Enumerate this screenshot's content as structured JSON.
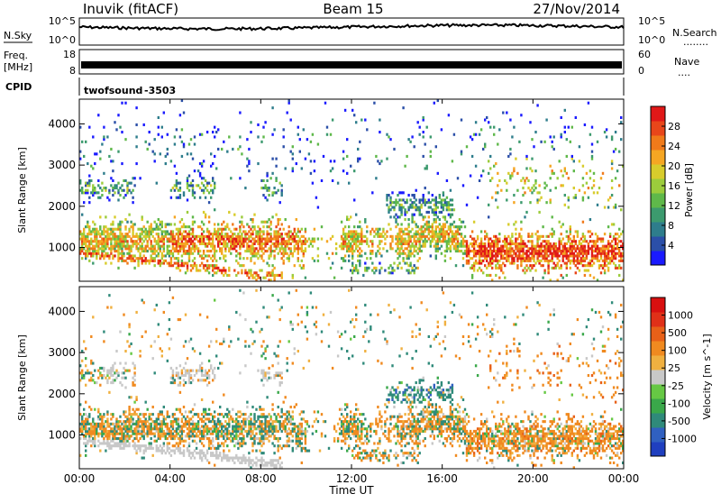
{
  "header": {
    "station": "Inuvik (fitACF)",
    "beam": "Beam 15",
    "date": "27/Nov/2014"
  },
  "noise_panel": {
    "left_label": "N.Sky",
    "left_ticks": [
      "10^5",
      "10^0"
    ],
    "right_ticks": [
      "10^5",
      "10^0"
    ],
    "right_label": "N.Search",
    "right_dots": "........"
  },
  "freq_panel": {
    "left_label_1": "Freq.",
    "left_label_2": "[MHz]",
    "left_ticks": [
      "18",
      "8"
    ],
    "right_ticks": [
      "60",
      "0"
    ],
    "right_label": "Nave",
    "right_dots": "....",
    "freq_mhz": 10.5,
    "nave": 24
  },
  "cpid_panel": {
    "label": "CPID",
    "program": "twofsound",
    "cpid_value": "-3503"
  },
  "chart_data": [
    {
      "type": "heatmap",
      "title": "",
      "quantity": "Power",
      "ylabel": "Slant Range [km]",
      "ylim": [
        180,
        4600
      ],
      "yticks": [
        "1000",
        "2000",
        "3000",
        "4000"
      ],
      "ytick_values": [
        1000,
        2000,
        3000,
        4000
      ],
      "xlim_hours": [
        0,
        24
      ],
      "colorbar": {
        "label": "Power [dB]",
        "ticks": [
          "4",
          "8",
          "12",
          "16",
          "20",
          "24",
          "28"
        ],
        "tick_values": [
          4,
          8,
          12,
          16,
          20,
          24,
          28
        ],
        "range": [
          0,
          30
        ],
        "colors": [
          "#1a1aff",
          "#2b4fa8",
          "#2e7d8c",
          "#3c9a6e",
          "#5fb84a",
          "#9ccc3c",
          "#d8cc2c",
          "#f5a623",
          "#f07a1a",
          "#e8461a",
          "#e01818"
        ]
      }
    },
    {
      "type": "heatmap",
      "title": "",
      "quantity": "Velocity",
      "ylabel": "Slant Range [km]",
      "ylim": [
        180,
        4600
      ],
      "yticks": [
        "1000",
        "2000",
        "3000",
        "4000"
      ],
      "ytick_values": [
        1000,
        2000,
        3000,
        4000
      ],
      "xlim_hours": [
        0,
        24
      ],
      "colorbar": {
        "label": "Velocity [m s^-1]",
        "ticks": [
          "1000",
          "500",
          "100",
          "25",
          "-25",
          "-100",
          "-500",
          "-1000"
        ],
        "colors": [
          "#1f3fbf",
          "#3060c0",
          "#2f8a7a",
          "#3aa84a",
          "#66c844",
          "#c8c8c8",
          "#f0b040",
          "#f08a20",
          "#e86018",
          "#e03018",
          "#d81010"
        ]
      }
    }
  ],
  "xaxis": {
    "ticks": [
      "00:00",
      "04:00",
      "08:00",
      "12:00",
      "16:00",
      "20:00",
      "00:00"
    ],
    "tick_hours": [
      0,
      4,
      8,
      12,
      16,
      20,
      24
    ],
    "label": "Time UT"
  }
}
